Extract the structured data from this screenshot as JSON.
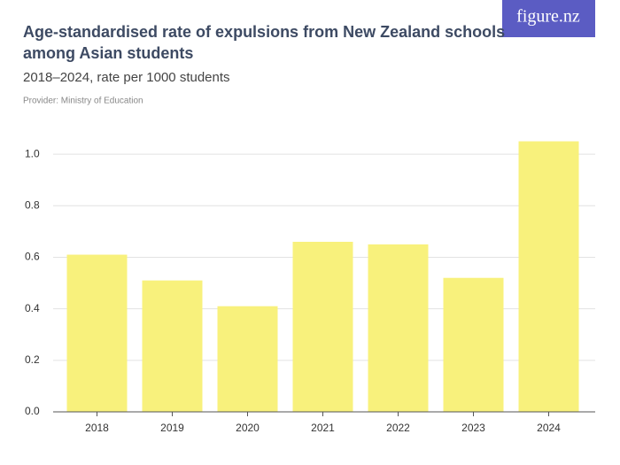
{
  "chart_data": {
    "type": "bar",
    "title": "Age-standardised rate of expulsions from New Zealand schools",
    "title_line2": "among Asian students",
    "subtitle": "2018–2024, rate per 1000 students",
    "provider": "Provider: Ministry of Education",
    "logo": "figure.nz",
    "categories": [
      "2018",
      "2019",
      "2020",
      "2021",
      "2022",
      "2023",
      "2024"
    ],
    "values": [
      0.61,
      0.51,
      0.41,
      0.66,
      0.65,
      0.52,
      1.05
    ],
    "color": "#f8f17c",
    "ylim": [
      0,
      1.1
    ],
    "yticks": [
      {
        "value": 0,
        "label": "0.0"
      },
      0.2,
      0.4,
      0.6,
      0.8,
      {
        "value": 1,
        "label": "1.0"
      }
    ],
    "grid": true
  }
}
